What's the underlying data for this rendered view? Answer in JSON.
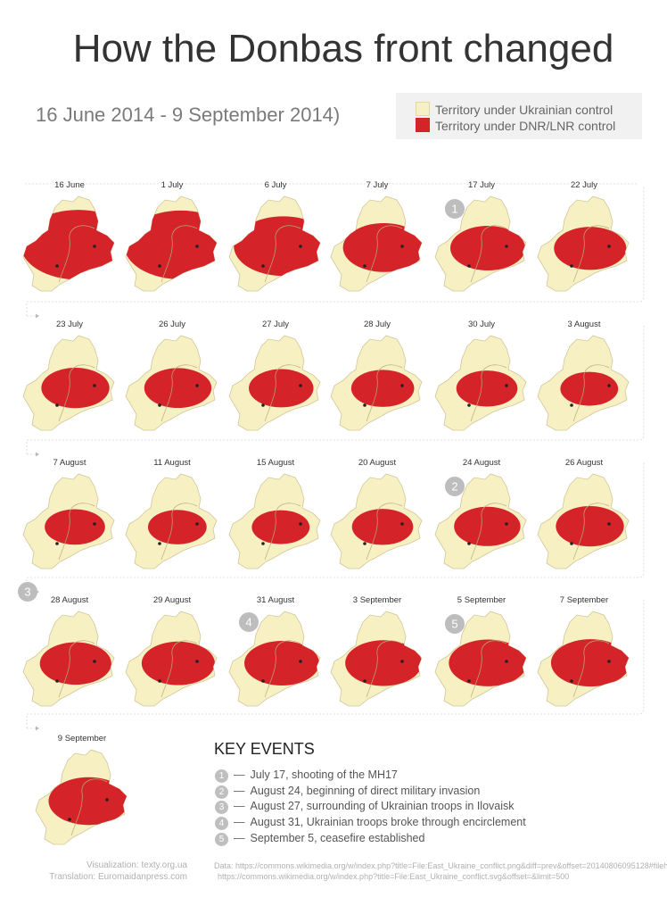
{
  "title": "How the Donbas front changed",
  "subtitle": "16 June 2014 - 9 September 2014)",
  "legend": {
    "ukrainian": {
      "label": "Territory under Ukrainian  control",
      "color": "#f7f0c2"
    },
    "separatist": {
      "label": "Territory under DNR/LNR control",
      "color": "#d4242a"
    }
  },
  "maps": [
    {
      "date": "16 June",
      "control": 0.97,
      "marker": ""
    },
    {
      "date": "1 July",
      "control": 0.95,
      "marker": ""
    },
    {
      "date": "6  July",
      "control": 0.78,
      "marker": ""
    },
    {
      "date": "7 July",
      "control": 0.58,
      "marker": ""
    },
    {
      "date": "17 July",
      "control": 0.5,
      "marker": "1"
    },
    {
      "date": "22  July",
      "control": 0.47,
      "marker": ""
    },
    {
      "date": "23 July",
      "control": 0.42,
      "marker": ""
    },
    {
      "date": "26 July",
      "control": 0.41,
      "marker": ""
    },
    {
      "date": "27 July",
      "control": 0.38,
      "marker": ""
    },
    {
      "date": "28  July",
      "control": 0.36,
      "marker": ""
    },
    {
      "date": "30  July",
      "control": 0.34,
      "marker": ""
    },
    {
      "date": "3  August",
      "control": 0.3,
      "marker": ""
    },
    {
      "date": "7 August",
      "control": 0.33,
      "marker": ""
    },
    {
      "date": "11 August",
      "control": 0.31,
      "marker": ""
    },
    {
      "date": "15 August",
      "control": 0.3,
      "marker": ""
    },
    {
      "date": "20  August",
      "control": 0.34,
      "marker": ""
    },
    {
      "date": "24  August",
      "control": 0.4,
      "marker": "2"
    },
    {
      "date": "26 August",
      "control": 0.42,
      "marker": ""
    },
    {
      "date": "28 August",
      "control": 0.46,
      "marker": "3"
    },
    {
      "date": "29 August",
      "control": 0.48,
      "marker": ""
    },
    {
      "date": "31 August",
      "control": 0.5,
      "marker": "4"
    },
    {
      "date": "3  September",
      "control": 0.52,
      "marker": ""
    },
    {
      "date": "5 September",
      "control": 0.54,
      "marker": "5"
    },
    {
      "date": "7  September",
      "control": 0.55,
      "marker": ""
    },
    {
      "date": "9 September",
      "control": 0.56,
      "marker": ""
    }
  ],
  "key_events": {
    "title": "KEY EVENTS",
    "items": [
      {
        "num": "1",
        "dash": "—",
        "text": "July 17, shooting of the MH17"
      },
      {
        "num": "2",
        "dash": "—",
        "text": "August 24, beginning of direct military invasion"
      },
      {
        "num": "3",
        "dash": "—",
        "text": "August 27, surrounding of Ukrainian troops in Ilovaisk"
      },
      {
        "num": "4",
        "dash": "—",
        "text": "August 31, Ukrainian troops broke through encirclement"
      },
      {
        "num": "5",
        "dash": "—",
        "text": "September 5, ceasefire established"
      }
    ]
  },
  "credits": {
    "visualization": "Visualization: texty.org.ua",
    "translation": "Translation: Euromaidanpress.com",
    "data_line1": "Data: https://commons.wikimedia.org/w/index.php?title=File:East_Ukraine_conflict.png&diff=prev&offset=20140806095128#filehistory",
    "data_line2": "https://commons.wikimedia.org/w/index.php?title=File:East_Ukraine_conflict.svg&offset=&limit=500"
  }
}
